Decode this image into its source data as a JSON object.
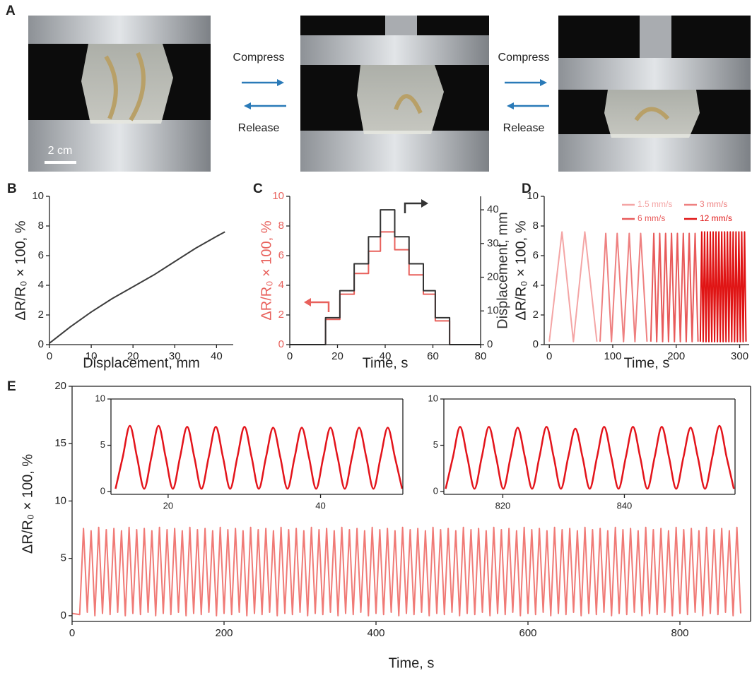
{
  "figure": {
    "panel_label": "A",
    "steps": [
      {
        "top": "Compress",
        "bottom": "Release"
      },
      {
        "top": "Compress",
        "bottom": "Release"
      }
    ],
    "scale_bar": "2 cm"
  },
  "chart_data": [
    {
      "panel_label": "B",
      "type": "line",
      "x_label": "Displacement, mm",
      "y_label": "ΔR/R₀ × 100, %",
      "x": [
        0,
        5,
        10,
        15,
        20,
        25,
        30,
        35,
        40,
        42
      ],
      "series": [
        {
          "color": "#3c3c3c",
          "values": [
            0.1,
            1.2,
            2.2,
            3.1,
            3.9,
            4.7,
            5.6,
            6.5,
            7.3,
            7.6
          ]
        }
      ],
      "xlim": [
        0,
        44
      ],
      "xticks": [
        0,
        10,
        20,
        30,
        40
      ],
      "ylim": [
        0,
        10
      ],
      "yticks": [
        0,
        2,
        4,
        6,
        8,
        10
      ]
    },
    {
      "panel_label": "C",
      "type": "line",
      "x_label": "Time, s",
      "y_label": "ΔR/R₀ × 100, %",
      "y2_label": "Displacement, mm",
      "x": [
        0,
        15,
        15,
        21,
        21,
        27,
        27,
        33,
        33,
        38,
        38,
        44,
        44,
        50,
        50,
        56,
        56,
        61,
        61,
        67,
        67,
        80
      ],
      "series": [
        {
          "color": "#e8615c",
          "values": [
            0,
            0,
            1.7,
            1.7,
            3.4,
            3.4,
            4.8,
            4.8,
            6.3,
            6.3,
            7.6,
            7.6,
            6.4,
            6.4,
            4.7,
            4.7,
            3.4,
            3.4,
            1.6,
            1.6,
            0,
            0
          ]
        },
        {
          "color": "#333333",
          "axis": "y2",
          "values": [
            0,
            0,
            8,
            8,
            16,
            16,
            24,
            24,
            32,
            32,
            40,
            40,
            32,
            32,
            24,
            24,
            16,
            16,
            8,
            8,
            0,
            0
          ]
        }
      ],
      "xlim": [
        0,
        80
      ],
      "xticks": [
        0,
        20,
        40,
        60,
        80
      ],
      "ylim": [
        0,
        10
      ],
      "yticks": [
        0,
        2,
        4,
        6,
        8,
        10
      ],
      "y2lim": [
        0,
        44
      ],
      "y2ticks": [
        0,
        10,
        20,
        30,
        40
      ]
    },
    {
      "panel_label": "D",
      "type": "line",
      "x_label": "Time, s",
      "y_label": "ΔR/R₀ × 100, %",
      "legend": "upper right",
      "series": [
        {
          "name": "1.5 mm/s",
          "color": "#f4a5a5",
          "x": [
            0,
            20,
            38,
            56,
            75
          ],
          "values": [
            0.2,
            7.6,
            0.2,
            7.6,
            0.2
          ]
        },
        {
          "name": "3 mm/s",
          "color": "#ee8080",
          "x": [
            80,
            89,
            98,
            107,
            117,
            126,
            135,
            144,
            154
          ],
          "values": [
            0.2,
            7.5,
            0.2,
            7.5,
            0.2,
            7.5,
            0.2,
            7.5,
            0.2
          ]
        },
        {
          "name": "6 mm/s",
          "color": "#e85a5a",
          "x": [
            160,
            164.7,
            169.3,
            174,
            178.6,
            183.3,
            187.9,
            192.6,
            197.2,
            201.9,
            206.5,
            211.2,
            215.8,
            220.5,
            225.1,
            229.8,
            234.4
          ],
          "values": [
            0.2,
            7.5,
            0.2,
            7.5,
            0.2,
            7.5,
            0.2,
            7.5,
            0.2,
            7.5,
            0.2,
            7.5,
            0.2,
            7.5,
            0.2,
            7.5,
            0.2
          ]
        },
        {
          "name": "12 mm/s",
          "color": "#e01515",
          "x": [
            238,
            240.25,
            242.5,
            244.75,
            247,
            249.25,
            251.5,
            253.75,
            256,
            258.25,
            260.5,
            262.75,
            265,
            267.25,
            269.5,
            271.75,
            274,
            276.25,
            278.5,
            280.75,
            283,
            285.25,
            287.5,
            289.75,
            292,
            294.25,
            296.5,
            298.75,
            301,
            303.25,
            305.5,
            307.75,
            310
          ],
          "values": [
            0.2,
            7.6,
            0.2,
            7.6,
            0.2,
            7.6,
            0.2,
            7.6,
            0.2,
            7.6,
            0.2,
            7.6,
            0.2,
            7.6,
            0.2,
            7.6,
            0.2,
            7.6,
            0.2,
            7.6,
            0.2,
            7.6,
            0.2,
            7.6,
            0.2,
            7.6,
            0.2,
            7.6,
            0.2,
            7.6,
            0.2,
            7.6,
            0.2
          ]
        }
      ],
      "xlim": [
        -8,
        315
      ],
      "xticks": [
        0,
        100,
        200,
        300
      ],
      "ylim": [
        0,
        10
      ],
      "yticks": [
        0,
        2,
        4,
        6,
        8,
        10
      ]
    },
    {
      "panel_label": "E",
      "type": "line",
      "x_label": "Time, s",
      "y_label": "ΔR/R₀ × 100, %",
      "frame": true,
      "x": [
        0,
        10,
        15,
        20,
        25,
        30,
        35,
        40,
        45,
        50,
        55,
        60,
        65,
        70,
        75,
        80,
        85,
        90,
        95,
        100,
        105,
        110,
        115,
        120,
        125,
        130,
        135,
        140,
        145,
        150,
        155,
        160,
        165,
        170,
        175,
        180,
        185,
        190,
        195,
        200,
        205,
        210,
        215,
        220,
        225,
        230,
        235,
        240,
        245,
        250,
        255,
        260,
        265,
        270,
        275,
        280,
        285,
        290,
        295,
        300,
        305,
        310,
        315,
        320,
        325,
        330,
        335,
        340,
        345,
        350,
        355,
        360,
        365,
        370,
        375,
        380,
        385,
        390,
        395,
        400,
        405,
        410,
        415,
        420,
        425,
        430,
        435,
        440,
        445,
        450,
        455,
        460,
        465,
        470,
        475,
        480,
        485,
        490,
        495,
        500,
        505,
        510,
        515,
        520,
        525,
        530,
        535,
        540,
        545,
        550,
        555,
        560,
        565,
        570,
        575,
        580,
        585,
        590,
        595,
        600,
        605,
        610,
        615,
        620,
        625,
        630,
        635,
        640,
        645,
        650,
        655,
        660,
        665,
        670,
        675,
        680,
        685,
        690,
        695,
        700,
        705,
        710,
        715,
        720,
        725,
        730,
        735,
        740,
        745,
        750,
        755,
        760,
        765,
        770,
        775,
        780,
        785,
        790,
        795,
        800,
        805,
        810,
        815,
        820,
        825,
        830,
        835,
        840,
        845,
        850,
        855,
        860,
        865,
        870,
        875,
        880
      ],
      "series": [
        {
          "color": "#f07a76",
          "values": [
            0.2,
            0.1,
            7.6,
            0.3,
            7.4,
            0,
            7.7,
            0.2,
            7.5,
            0.1,
            7.6,
            0.3,
            7.4,
            0,
            7.7,
            0.2,
            7.5,
            0.1,
            7.6,
            0.3,
            7.4,
            0,
            7.7,
            0.2,
            7.5,
            0.1,
            7.6,
            0.3,
            7.4,
            0,
            7.7,
            0.2,
            7.5,
            0.1,
            7.6,
            0.3,
            7.4,
            0,
            7.7,
            0.2,
            7.5,
            0.1,
            7.6,
            0.3,
            7.4,
            0,
            7.7,
            0.2,
            7.5,
            0.1,
            7.6,
            0.3,
            7.4,
            0,
            7.7,
            0.2,
            7.5,
            0.1,
            7.6,
            0.3,
            7.4,
            0,
            7.7,
            0.2,
            7.5,
            0.1,
            7.6,
            0.3,
            7.4,
            0,
            7.7,
            0.2,
            7.5,
            0.1,
            7.6,
            0.3,
            7.4,
            0,
            7.7,
            0.2,
            7.5,
            0.1,
            7.6,
            0.3,
            7.4,
            0,
            7.7,
            0.2,
            7.5,
            0.1,
            7.6,
            0.3,
            7.4,
            0,
            7.7,
            0.2,
            7.5,
            0.1,
            7.6,
            0.3,
            7.4,
            0,
            7.7,
            0.2,
            7.5,
            0.1,
            7.6,
            0.3,
            7.4,
            0,
            7.7,
            0.2,
            7.5,
            0.1,
            7.6,
            0.3,
            7.4,
            0,
            7.7,
            0.2,
            7.5,
            0.1,
            7.6,
            0.3,
            7.4,
            0,
            7.7,
            0.2,
            7.5,
            0.1,
            7.6,
            0.3,
            7.4,
            0,
            7.7,
            0.2,
            7.5,
            0.1,
            7.6,
            0.3,
            7.4,
            0,
            7.7,
            0.2,
            7.5,
            0.1,
            7.6,
            0.3,
            7.4,
            0,
            7.7,
            0.2,
            7.5,
            0.1,
            7.6,
            0.3,
            7.4,
            0,
            7.7,
            0.2,
            7.5,
            0.1,
            7.6,
            0.3,
            7.4,
            0,
            7.7,
            0.2,
            7.5,
            0.1,
            7.6,
            0.3,
            7.4,
            0,
            7.7,
            0.2
          ]
        }
      ],
      "xlim": [
        0,
        893
      ],
      "xticks": [
        0,
        200,
        400,
        600,
        800
      ],
      "ylim": [
        -0.5,
        20
      ],
      "yticks": [
        0,
        5,
        10,
        15,
        20
      ],
      "insets": [
        {
          "type": "line",
          "frame": true,
          "smooth": true,
          "x": [
            13.1,
            14.04,
            14.98,
            15.92,
            16.86,
            17.8,
            18.74,
            19.68,
            20.62,
            21.56,
            22.5,
            23.44,
            24.38,
            25.32,
            26.26,
            27.2,
            28.14,
            29.08,
            30.02,
            30.96,
            31.9,
            32.84,
            33.78,
            34.72,
            35.66,
            36.6,
            37.54,
            38.48,
            39.42,
            40.36,
            41.3,
            42.24,
            43.18,
            44.12,
            45.06,
            46.0,
            46.94,
            47.88,
            48.82,
            49.76,
            50.7
          ],
          "series": [
            {
              "color": "#e3141b",
              "values": [
                0.3,
                3.7,
                7.1,
                3.7,
                0.3,
                3.7,
                7.1,
                3.7,
                0.3,
                3.7,
                7.0,
                3.7,
                0.3,
                3.7,
                7.0,
                3.7,
                0.3,
                3.7,
                7.0,
                3.7,
                0.3,
                3.7,
                6.9,
                3.7,
                0.3,
                3.7,
                6.9,
                3.7,
                0.3,
                3.7,
                6.9,
                3.7,
                0.3,
                3.7,
                6.9,
                3.7,
                0.3,
                3.7,
                6.9,
                3.7,
                0.3
              ]
            }
          ],
          "xlim": [
            12.5,
            50.8
          ],
          "xticks": [
            20,
            40
          ],
          "ylim": [
            -0.3,
            10
          ],
          "yticks": [
            0,
            5,
            10
          ]
        },
        {
          "type": "line",
          "frame": true,
          "smooth": true,
          "x": [
            810.6,
            811.79,
            812.97,
            814.16,
            815.34,
            816.53,
            817.71,
            818.9,
            820.08,
            821.27,
            822.45,
            823.64,
            824.82,
            826.01,
            827.19,
            828.38,
            829.56,
            830.75,
            831.93,
            833.12,
            834.3,
            835.49,
            836.67,
            837.86,
            839.04,
            840.23,
            841.41,
            842.6,
            843.78,
            844.97,
            846.15,
            847.34,
            848.52,
            849.71,
            850.89,
            852.08,
            853.26,
            854.45,
            855.63,
            856.82,
            858.0
          ],
          "series": [
            {
              "color": "#e3141b",
              "values": [
                0.3,
                3.7,
                7.0,
                3.7,
                0.3,
                3.7,
                7.0,
                3.7,
                0.3,
                3.7,
                6.9,
                3.7,
                0.3,
                3.7,
                7.0,
                3.7,
                0.3,
                3.7,
                6.8,
                3.7,
                0.3,
                3.7,
                7.0,
                3.7,
                0.3,
                3.7,
                7.0,
                3.7,
                0.3,
                3.7,
                7.0,
                3.7,
                0.3,
                3.7,
                6.9,
                3.7,
                0.3,
                3.7,
                7.1,
                3.7,
                0.3
              ]
            }
          ],
          "xlim": [
            810.3,
            858.2
          ],
          "xticks": [
            820,
            840
          ],
          "ylim": [
            -0.3,
            10
          ],
          "yticks": [
            0,
            5,
            10
          ]
        }
      ]
    }
  ]
}
